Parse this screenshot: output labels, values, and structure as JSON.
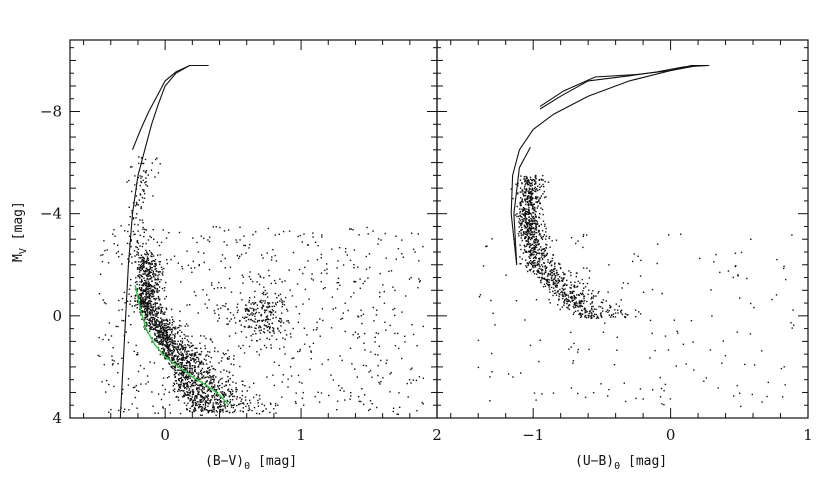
{
  "chart_data": [
    {
      "type": "scatter",
      "panel": "left",
      "xlabel": "(B−V)",
      "xlabel_subscript": "0",
      "xlabel_unit": "[mag]",
      "ylabel": "M",
      "ylabel_subscript": "V",
      "ylabel_unit": "[mag]",
      "xlim": [
        -0.7,
        2.0
      ],
      "ylim": [
        4,
        -10.8
      ],
      "x_ticks": [
        0,
        1,
        2
      ],
      "x_tick_labels": [
        "0",
        "1",
        "2"
      ],
      "y_ticks": [
        -8,
        -4,
        0,
        4
      ],
      "y_tick_labels": [
        "−8",
        "−4",
        "0",
        "4"
      ],
      "grid": false,
      "series": [
        {
          "kind": "isochrone",
          "color": "#111111",
          "x": [
            -0.33,
            -0.31,
            -0.29,
            -0.27,
            -0.24,
            -0.2,
            -0.15,
            -0.1,
            -0.05,
            0.0,
            0.08,
            0.18,
            0.32
          ],
          "y": [
            4.0,
            2.0,
            0.0,
            -2.0,
            -4.0,
            -5.5,
            -6.5,
            -7.5,
            -8.3,
            -9.0,
            -9.5,
            -9.8,
            -9.8
          ]
        },
        {
          "kind": "isochrone",
          "color": "#111111",
          "x": [
            -0.24,
            -0.18,
            -0.12,
            -0.06,
            0.0,
            0.08,
            0.18,
            0.32
          ],
          "y": [
            -6.5,
            -7.3,
            -8.0,
            -8.6,
            -9.2,
            -9.55,
            -9.8,
            -9.8
          ]
        },
        {
          "kind": "ZAMS",
          "color": "#2ecc40",
          "x": [
            -0.22,
            -0.18,
            -0.14,
            -0.08,
            0.0,
            0.1,
            0.2,
            0.3,
            0.4,
            0.47
          ],
          "y": [
            -1.2,
            -0.2,
            0.5,
            1.1,
            1.6,
            2.0,
            2.4,
            2.7,
            3.1,
            3.5
          ]
        },
        {
          "kind": "stars",
          "color": "#111111",
          "density_components": [
            {
              "label": "main sequence",
              "count": 1800
            },
            {
              "label": "red clump",
              "x": 0.72,
              "y": 0.0,
              "count": 220
            },
            {
              "label": "upper sequence",
              "count": 120
            },
            {
              "label": "field",
              "count": 700
            }
          ]
        }
      ]
    },
    {
      "type": "scatter",
      "panel": "right",
      "xlabel": "(U−B)",
      "xlabel_subscript": "0",
      "xlabel_unit": "[mag]",
      "xlim": [
        -1.7,
        1.0
      ],
      "ylim": [
        4,
        -10.8
      ],
      "x_ticks": [
        -1,
        0,
        1
      ],
      "x_tick_labels": [
        "−1",
        "0",
        "1"
      ],
      "grid": false,
      "series": [
        {
          "kind": "isochrone",
          "color": "#111111",
          "x": [
            -1.12,
            -1.16,
            -1.15,
            -1.1,
            -1.0,
            -0.85,
            -0.6,
            -0.3,
            0.0,
            0.15,
            0.28
          ],
          "y": [
            -2.0,
            -4.0,
            -5.5,
            -6.5,
            -7.3,
            -7.9,
            -8.6,
            -9.2,
            -9.6,
            -9.8,
            -9.8
          ]
        },
        {
          "kind": "isochrone",
          "color": "#111111",
          "x": [
            -1.12,
            -1.14,
            -1.1,
            -1.02
          ],
          "y": [
            -2.0,
            -4.0,
            -5.8,
            -6.6
          ]
        },
        {
          "kind": "isochrone",
          "color": "#111111",
          "x": [
            -0.95,
            -0.8,
            -0.6,
            -0.3,
            -0.1,
            0.1,
            0.28
          ],
          "y": [
            -8.1,
            -8.6,
            -9.2,
            -9.4,
            -9.55,
            -9.75,
            -9.8
          ]
        },
        {
          "kind": "isochrone",
          "color": "#111111",
          "x": [
            -0.95,
            -0.78,
            -0.55,
            -0.25,
            0.0,
            0.2,
            0.28
          ],
          "y": [
            -8.2,
            -8.8,
            -9.35,
            -9.45,
            -9.6,
            -9.8,
            -9.8
          ]
        },
        {
          "kind": "stars",
          "color": "#111111",
          "density_components": [
            {
              "label": "main sequence",
              "count": 1100
            },
            {
              "label": "field",
              "count": 180
            }
          ]
        }
      ]
    }
  ]
}
